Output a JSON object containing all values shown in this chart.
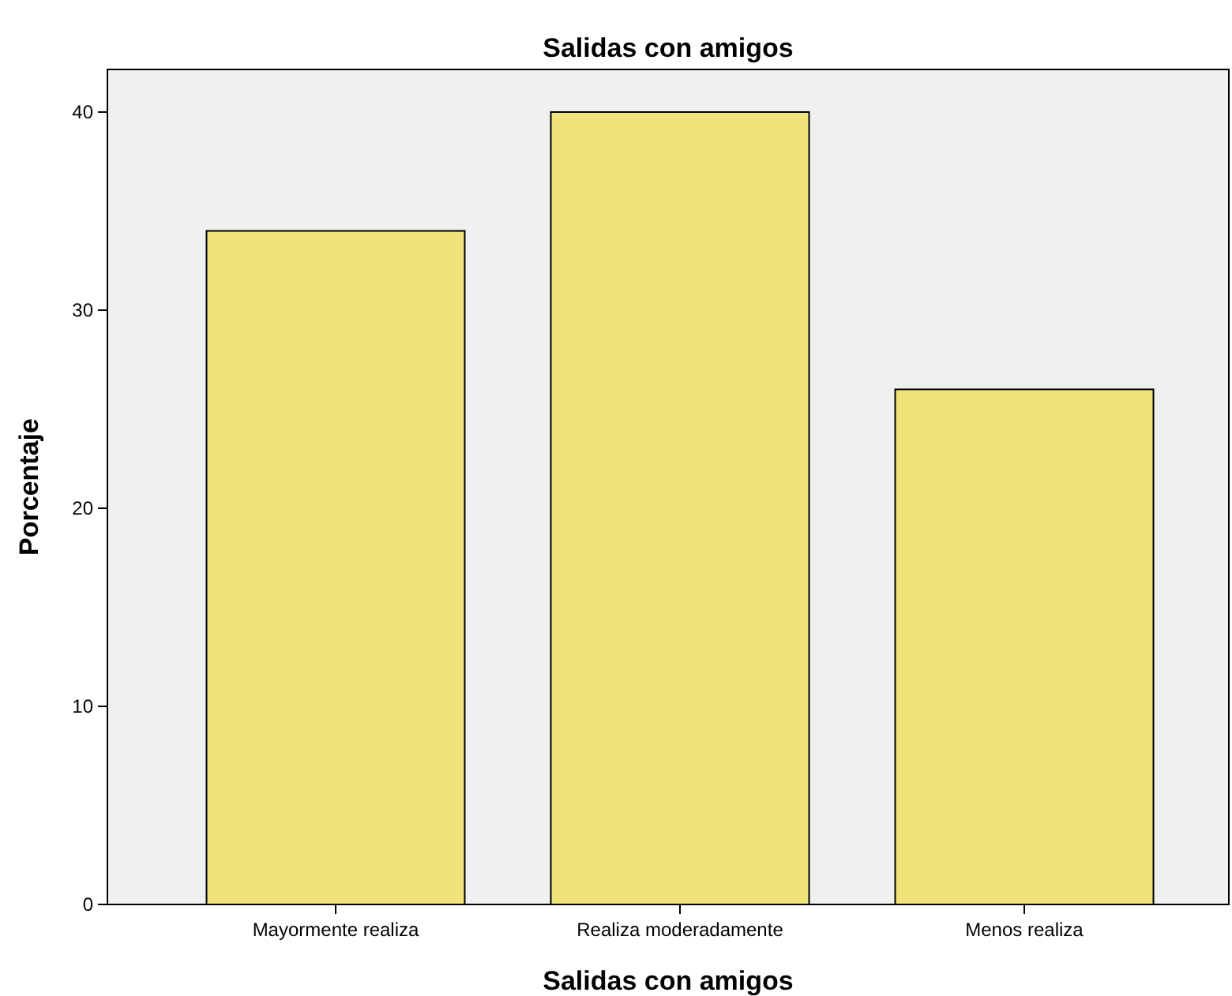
{
  "chart_data": {
    "type": "bar",
    "title": "Salidas con amigos",
    "xlabel": "Salidas con amigos",
    "ylabel": "Porcentaje",
    "categories": [
      "Mayormente realiza",
      "Realiza moderadamente",
      "Menos realiza"
    ],
    "values": [
      34,
      40,
      26
    ],
    "color": "#efe37a",
    "ylim": [
      0,
      42.15
    ],
    "yticks": [
      0,
      10,
      20,
      30,
      40
    ],
    "grid": false
  }
}
